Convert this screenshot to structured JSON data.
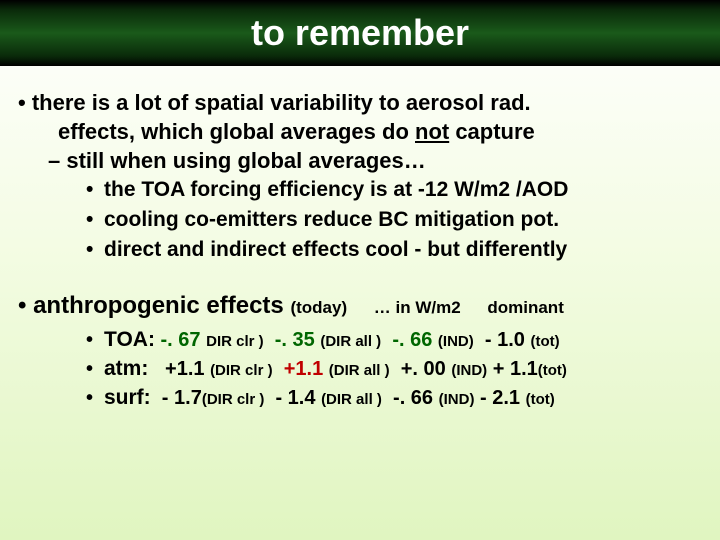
{
  "title": "to remember",
  "bullets1": {
    "line1": "• there is a lot of spatial variability to aerosol rad.",
    "line2": "effects, which global  averages do ",
    "not": "not",
    "line2b": " capture",
    "dash": "– still when using global averages…",
    "sub": [
      "the TOA forcing efficiency is at -12 W/m2 /AOD",
      "cooling co-emitters reduce BC mitigation pot.",
      "direct and indirect effects cool - but differently"
    ]
  },
  "section2": {
    "head": "• anthropogenic  effects ",
    "today": "(today)",
    "inwm2": "… in W/m2",
    "dominant": "dominant"
  },
  "rows": [
    {
      "label": "TOA:",
      "v1": "-. 67",
      "p1": "DIR clr )",
      "v2": "-. 35",
      "p2": "(DIR all )",
      "v3": "-. 66",
      "p3": "(IND)",
      "vt": "- 1.0",
      "pt": "(tot)",
      "c1": "green",
      "c2": "green",
      "c3": "green"
    },
    {
      "label": "atm:",
      "v1": "+1.1",
      "p1": "(DIR clr )",
      "v2": "+1.1",
      "p2": "(DIR all )",
      "v3": "+. 00",
      "p3": "(IND)",
      "vt": "+ 1.1",
      "pt": "(tot)",
      "c1": "black",
      "c2": "red",
      "c3": "black"
    },
    {
      "label": "surf:",
      "v1": "- 1.7",
      "p1": "(DIR clr )",
      "v2": "- 1.4",
      "p2": "(DIR all )",
      "v3": "-. 66",
      "p3": "(IND)",
      "vt": "- 2.1",
      "pt": "(tot)",
      "c1": "black",
      "c2": "black",
      "c3": "black"
    }
  ],
  "colors": {
    "red": "#c00000",
    "green": "#006600",
    "black": "#000000"
  }
}
